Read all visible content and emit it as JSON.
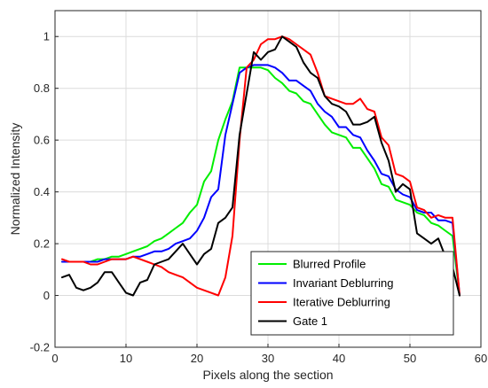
{
  "chart_data": {
    "type": "line",
    "title": "",
    "xlabel": "Pixels along the section",
    "ylabel": "Normalized Intensity",
    "xlim": [
      0,
      60
    ],
    "ylim": [
      -0.2,
      1.1
    ],
    "xticks": [
      0,
      10,
      20,
      30,
      40,
      50,
      60
    ],
    "yticks": [
      -0.2,
      0,
      0.2,
      0.4,
      0.6,
      0.8,
      1
    ],
    "xtick_labels": [
      "0",
      "10",
      "20",
      "30",
      "40",
      "50",
      "60"
    ],
    "ytick_labels": [
      "-0.2",
      "0",
      "0.2",
      "0.4",
      "0.6",
      "0.8",
      "1"
    ],
    "grid": true,
    "legend_position": "bottom-right",
    "series": [
      {
        "name": "Blurred Profile",
        "color": "#00ee00",
        "x": [
          1,
          2,
          3,
          4,
          5,
          6,
          7,
          8,
          9,
          10,
          11,
          12,
          13,
          14,
          15,
          16,
          17,
          18,
          19,
          20,
          21,
          22,
          23,
          24,
          25,
          26,
          27,
          28,
          29,
          30,
          31,
          32,
          33,
          34,
          35,
          36,
          37,
          38,
          39,
          40,
          41,
          42,
          43,
          44,
          45,
          46,
          47,
          48,
          49,
          50,
          51,
          52,
          53,
          54,
          55,
          56,
          57
        ],
        "y": [
          0.13,
          0.13,
          0.13,
          0.13,
          0.13,
          0.14,
          0.14,
          0.15,
          0.15,
          0.16,
          0.17,
          0.18,
          0.19,
          0.21,
          0.22,
          0.24,
          0.26,
          0.28,
          0.32,
          0.35,
          0.44,
          0.48,
          0.6,
          0.68,
          0.75,
          0.88,
          0.88,
          0.88,
          0.88,
          0.87,
          0.84,
          0.82,
          0.79,
          0.78,
          0.75,
          0.74,
          0.7,
          0.66,
          0.63,
          0.62,
          0.61,
          0.57,
          0.57,
          0.53,
          0.49,
          0.43,
          0.42,
          0.37,
          0.36,
          0.35,
          0.32,
          0.31,
          0.28,
          0.27,
          0.25,
          0.23,
          0.0
        ]
      },
      {
        "name": "Invariant Deblurring",
        "color": "#0000ff",
        "x": [
          1,
          2,
          3,
          4,
          5,
          6,
          7,
          8,
          9,
          10,
          11,
          12,
          13,
          14,
          15,
          16,
          17,
          18,
          19,
          20,
          21,
          22,
          23,
          24,
          25,
          26,
          27,
          28,
          29,
          30,
          31,
          32,
          33,
          34,
          35,
          36,
          37,
          38,
          39,
          40,
          41,
          42,
          43,
          44,
          45,
          46,
          47,
          48,
          49,
          50,
          51,
          52,
          53,
          54,
          55,
          56,
          57
        ],
        "y": [
          0.13,
          0.13,
          0.13,
          0.13,
          0.13,
          0.13,
          0.14,
          0.14,
          0.14,
          0.14,
          0.15,
          0.15,
          0.16,
          0.17,
          0.17,
          0.18,
          0.2,
          0.21,
          0.22,
          0.25,
          0.3,
          0.38,
          0.41,
          0.62,
          0.74,
          0.86,
          0.88,
          0.89,
          0.89,
          0.89,
          0.88,
          0.86,
          0.83,
          0.83,
          0.81,
          0.79,
          0.74,
          0.71,
          0.69,
          0.65,
          0.65,
          0.62,
          0.61,
          0.56,
          0.52,
          0.47,
          0.46,
          0.41,
          0.39,
          0.38,
          0.33,
          0.32,
          0.32,
          0.29,
          0.29,
          0.28,
          0.0
        ]
      },
      {
        "name": "Iterative Deblurring",
        "color": "#ff0000",
        "x": [
          1,
          2,
          3,
          4,
          5,
          6,
          7,
          8,
          9,
          10,
          11,
          12,
          13,
          14,
          15,
          16,
          17,
          18,
          19,
          20,
          21,
          22,
          23,
          24,
          25,
          26,
          27,
          28,
          29,
          30,
          31,
          32,
          33,
          34,
          35,
          36,
          37,
          38,
          39,
          40,
          41,
          42,
          43,
          44,
          45,
          46,
          47,
          48,
          49,
          50,
          51,
          52,
          53,
          54,
          55,
          56,
          57
        ],
        "y": [
          0.14,
          0.13,
          0.13,
          0.13,
          0.12,
          0.12,
          0.13,
          0.14,
          0.14,
          0.14,
          0.15,
          0.14,
          0.13,
          0.12,
          0.11,
          0.09,
          0.08,
          0.07,
          0.05,
          0.03,
          0.02,
          0.01,
          0.0,
          0.07,
          0.23,
          0.6,
          0.88,
          0.91,
          0.97,
          0.99,
          0.99,
          1.0,
          0.99,
          0.97,
          0.95,
          0.93,
          0.86,
          0.77,
          0.76,
          0.75,
          0.74,
          0.74,
          0.76,
          0.72,
          0.71,
          0.61,
          0.58,
          0.47,
          0.46,
          0.44,
          0.34,
          0.33,
          0.3,
          0.31,
          0.3,
          0.3,
          0.0
        ]
      },
      {
        "name": "Gate 1",
        "color": "#000000",
        "x": [
          1,
          2,
          3,
          4,
          5,
          6,
          7,
          8,
          9,
          10,
          11,
          12,
          13,
          14,
          15,
          16,
          17,
          18,
          19,
          20,
          21,
          22,
          23,
          24,
          25,
          26,
          27,
          28,
          29,
          30,
          31,
          32,
          33,
          34,
          35,
          36,
          37,
          38,
          39,
          40,
          41,
          42,
          43,
          44,
          45,
          46,
          47,
          48,
          49,
          50,
          51,
          52,
          53,
          54,
          55,
          56,
          57
        ],
        "y": [
          0.07,
          0.08,
          0.03,
          0.02,
          0.03,
          0.05,
          0.09,
          0.09,
          0.05,
          0.01,
          0.0,
          0.05,
          0.06,
          0.12,
          0.13,
          0.14,
          0.17,
          0.2,
          0.16,
          0.12,
          0.16,
          0.18,
          0.28,
          0.3,
          0.34,
          0.62,
          0.78,
          0.94,
          0.91,
          0.94,
          0.95,
          1.0,
          0.98,
          0.96,
          0.9,
          0.86,
          0.84,
          0.77,
          0.74,
          0.73,
          0.71,
          0.66,
          0.66,
          0.67,
          0.69,
          0.59,
          0.52,
          0.4,
          0.43,
          0.41,
          0.24,
          0.22,
          0.2,
          0.22,
          0.15,
          0.11,
          0.0
        ]
      }
    ]
  }
}
